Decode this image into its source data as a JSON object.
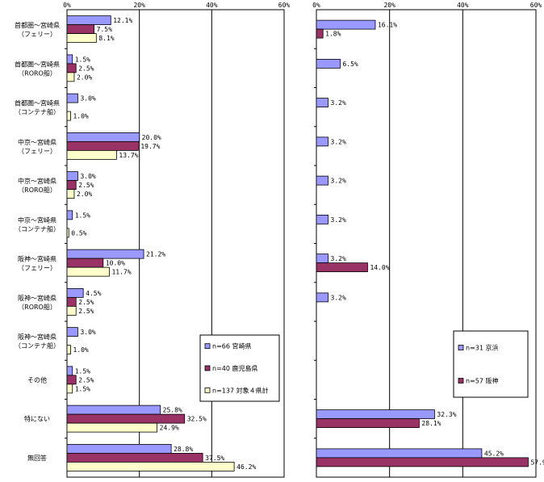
{
  "chart_data": [
    {
      "type": "bar",
      "orientation": "horizontal",
      "xlim": [
        0,
        60
      ],
      "xticks": [
        "0%",
        "20%",
        "40%",
        "60%"
      ],
      "grid": true,
      "legend_position": "bottom-right",
      "categories": [
        [
          "首都圏～宮崎県",
          "（フェリー）"
        ],
        [
          "首都圏～宮崎県",
          "（RORO船）"
        ],
        [
          "首都圏～宮崎県",
          "（コンテナ船）"
        ],
        [
          "中京～宮崎県",
          "（フェリー）"
        ],
        [
          "中京～宮崎県",
          "（RORO船）"
        ],
        [
          "中京～宮崎県",
          "（コンテナ船）"
        ],
        [
          "阪神～宮崎県",
          "（フェリー）"
        ],
        [
          "阪神～宮崎県",
          "（RORO船）"
        ],
        [
          "阪神～宮崎県",
          "（コンテナ船）"
        ],
        [
          "その他"
        ],
        [
          "特にない"
        ],
        [
          "無回答"
        ]
      ],
      "series": [
        {
          "name": "n=66 宮崎県",
          "color": "#9999ff",
          "values": [
            12.1,
            1.5,
            3.0,
            20.0,
            3.0,
            1.5,
            21.2,
            4.5,
            3.0,
            1.5,
            25.8,
            28.8
          ],
          "labels": [
            "12.1%",
            "1.5%",
            "3.0%",
            "20.0%",
            "3.0%",
            "1.5%",
            "21.2%",
            "4.5%",
            "3.0%",
            "1.5%",
            "25.8%",
            "28.8%"
          ]
        },
        {
          "name": "n=40 鹿児島県",
          "color": "#993366",
          "values": [
            7.5,
            2.5,
            null,
            19.7,
            2.5,
            null,
            10.0,
            2.5,
            null,
            2.5,
            32.5,
            37.5
          ],
          "labels": [
            "7.5%",
            "2.5%",
            null,
            "19.7%",
            "2.5%",
            null,
            "10.0%",
            "2.5%",
            null,
            "2.5%",
            "32.5%",
            "37.5%"
          ]
        },
        {
          "name": "n=137 対象４県計",
          "color": "#ffffcc",
          "values": [
            8.1,
            2.0,
            1.0,
            13.7,
            2.0,
            0.5,
            11.7,
            2.5,
            1.0,
            1.5,
            24.9,
            46.2
          ],
          "labels": [
            "8.1%",
            "2.0%",
            "1.0%",
            "13.7%",
            "2.0%",
            "0.5%",
            "11.7%",
            "2.5%",
            "1.0%",
            "1.5%",
            "24.9%",
            "46.2%"
          ]
        }
      ]
    },
    {
      "type": "bar",
      "orientation": "horizontal",
      "xlim": [
        0,
        60
      ],
      "xticks": [
        "0%",
        "20%",
        "40%",
        "60%"
      ],
      "grid": true,
      "legend_position": "bottom-right",
      "series": [
        {
          "name": "n=31 京浜",
          "color": "#9999ff",
          "values": [
            16.1,
            6.5,
            3.2,
            3.2,
            3.2,
            3.2,
            3.2,
            3.2,
            null,
            null,
            32.3,
            45.2
          ],
          "labels": [
            "16.1%",
            "6.5%",
            "3.2%",
            "3.2%",
            "3.2%",
            "3.2%",
            "3.2%",
            "3.2%",
            null,
            null,
            "32.3%",
            "45.2%"
          ]
        },
        {
          "name": "n=57 阪神",
          "color": "#993366",
          "values": [
            1.8,
            null,
            null,
            null,
            null,
            null,
            14.0,
            null,
            null,
            null,
            28.1,
            57.9
          ],
          "labels": [
            "1.8%",
            null,
            null,
            null,
            null,
            null,
            "14.0%",
            null,
            null,
            null,
            "28.1%",
            "57.9%"
          ]
        }
      ]
    }
  ]
}
